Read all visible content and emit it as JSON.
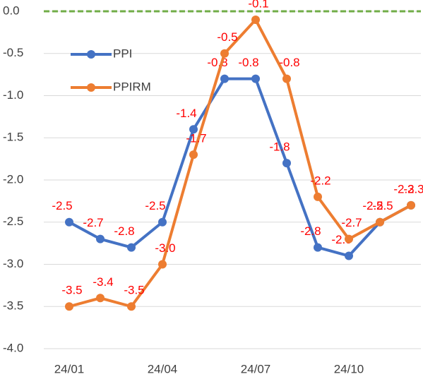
{
  "chart_data": {
    "type": "line",
    "categories": [
      "24/01",
      null,
      null,
      "24/04",
      null,
      null,
      "24/07",
      null,
      null,
      "24/10",
      null,
      null
    ],
    "series": [
      {
        "name": "PPI",
        "color": "#4472c4",
        "values": [
          -2.5,
          -2.7,
          -2.8,
          -2.5,
          -1.4,
          -0.8,
          -0.8,
          -1.8,
          -2.8,
          -2.9,
          -2.5,
          -2.3
        ]
      },
      {
        "name": "PPIRM",
        "color": "#ed7d31",
        "values": [
          -3.5,
          -3.4,
          -3.5,
          -3.0,
          -1.7,
          -0.5,
          -0.1,
          -0.8,
          -2.2,
          -2.7,
          -2.5,
          -2.3
        ],
        "value_labels": [
          "-3.5",
          "-3.4",
          "-3.5",
          "-3.0",
          "-1.7",
          "-0.5",
          "-0.1",
          "-0.8",
          "-2.2",
          "-2.7",
          "-2.5",
          "-2.3"
        ]
      }
    ],
    "ylim": [
      -4,
      0
    ],
    "yticks": [
      {
        "value": 0,
        "label": "0.0"
      },
      -0.5,
      {
        "value": -1,
        "label": "-1.0"
      },
      -1.5,
      {
        "value": -2,
        "label": "-2.0"
      },
      -2.5,
      {
        "value": -3,
        "label": "-3.0"
      },
      -3.5,
      {
        "value": -4,
        "label": "-4.0"
      }
    ],
    "grid": true,
    "zero_line_color": "#70ad47",
    "label_color": "#ff0000",
    "legend": "upper left"
  }
}
